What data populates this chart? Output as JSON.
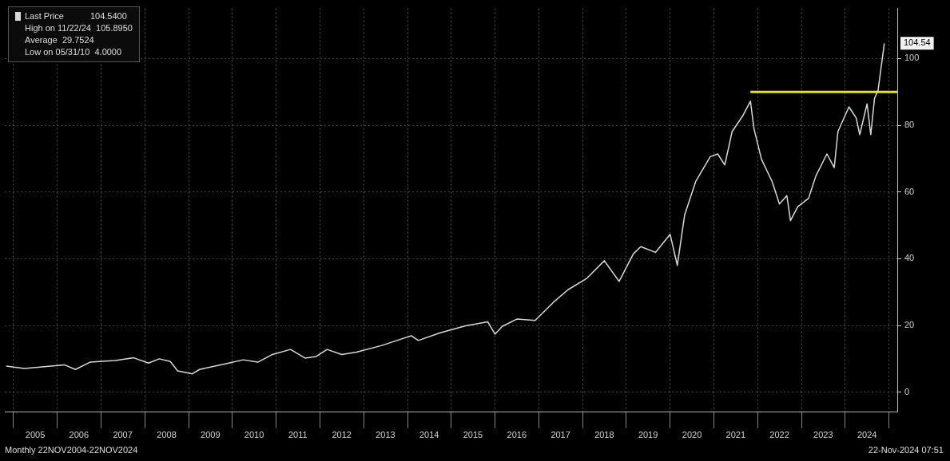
{
  "chart_data": {
    "type": "line",
    "x": [
      "2004-11",
      "2005-04",
      "2006-03",
      "2006-06",
      "2006-10",
      "2007-05",
      "2007-10",
      "2008-02",
      "2008-05",
      "2008-08",
      "2008-10",
      "2009-02",
      "2009-04",
      "2009-12",
      "2010-04",
      "2010-08",
      "2010-12",
      "2011-05",
      "2011-09",
      "2011-12",
      "2012-03",
      "2012-07",
      "2012-11",
      "2013-06",
      "2014-02",
      "2014-04",
      "2014-10",
      "2015-05",
      "2015-11",
      "2016-01",
      "2016-03",
      "2016-07",
      "2016-12",
      "2017-05",
      "2017-09",
      "2018-02",
      "2018-07",
      "2018-11",
      "2019-03",
      "2019-05",
      "2019-09",
      "2020-01",
      "2020-03",
      "2020-05",
      "2020-08",
      "2020-12",
      "2021-02",
      "2021-04",
      "2021-06",
      "2021-09",
      "2021-11",
      "2021-12",
      "2022-02",
      "2022-05",
      "2022-07",
      "2022-09",
      "2022-10",
      "2022-12",
      "2023-03",
      "2023-05",
      "2023-08",
      "2023-10",
      "2023-11",
      "2024-02",
      "2024-04",
      "2024-05",
      "2024-07",
      "2024-08",
      "2024-09",
      "2024-10",
      "2024-11-22"
    ],
    "series": [
      {
        "name": "Last Price",
        "color": "#d8d8d8",
        "values": [
          7.8,
          7.1,
          8.2,
          6.8,
          9.0,
          9.5,
          10.3,
          8.7,
          10.0,
          9.2,
          6.4,
          5.5,
          6.8,
          8.7,
          9.7,
          9.0,
          11.3,
          12.8,
          10.2,
          10.7,
          12.8,
          11.3,
          12.0,
          14.0,
          16.9,
          15.5,
          17.8,
          19.9,
          21.1,
          17.4,
          19.7,
          21.9,
          21.5,
          26.9,
          30.7,
          34.0,
          39.4,
          33.2,
          41.5,
          43.6,
          41.9,
          47.3,
          38.0,
          53.1,
          63.1,
          70.6,
          71.4,
          68.1,
          78.1,
          83.0,
          87.2,
          78.9,
          69.8,
          63.1,
          56.4,
          58.9,
          51.4,
          55.6,
          58.1,
          64.8,
          71.4,
          67.3,
          78.1,
          85.5,
          82.2,
          77.2,
          86.4,
          77.2,
          88.0,
          90.5,
          104.54
        ]
      },
      {
        "color": "#e6e033",
        "x": [
          "2021-11",
          "2025-03-10"
        ],
        "values": [
          90,
          90
        ]
      }
    ],
    "xlim": [
      "2004-10-20",
      "2025-03-10"
    ],
    "xticks": [
      {
        "value": "2005-01-01",
        "label": null
      },
      {
        "value": "2005-07-01",
        "label": "2005"
      },
      {
        "value": "2006-01-01",
        "label": null
      },
      {
        "value": "2006-07-01",
        "label": "2006"
      },
      {
        "value": "2007-01-01",
        "label": null
      },
      {
        "value": "2007-07-01",
        "label": "2007"
      },
      {
        "value": "2008-01-01",
        "label": null
      },
      {
        "value": "2008-07-01",
        "label": "2008"
      },
      {
        "value": "2009-01-01",
        "label": null
      },
      {
        "value": "2009-07-01",
        "label": "2009"
      },
      {
        "value": "2010-01-01",
        "label": null
      },
      {
        "value": "2010-07-01",
        "label": "2010"
      },
      {
        "value": "2011-01-01",
        "label": null
      },
      {
        "value": "2011-07-01",
        "label": "2011"
      },
      {
        "value": "2012-01-01",
        "label": null
      },
      {
        "value": "2012-07-01",
        "label": "2012"
      },
      {
        "value": "2013-01-01",
        "label": null
      },
      {
        "value": "2013-07-01",
        "label": "2013"
      },
      {
        "value": "2014-01-01",
        "label": null
      },
      {
        "value": "2014-07-01",
        "label": "2014"
      },
      {
        "value": "2015-01-01",
        "label": null
      },
      {
        "value": "2015-07-01",
        "label": "2015"
      },
      {
        "value": "2016-01-01",
        "label": null
      },
      {
        "value": "2016-07-01",
        "label": "2016"
      },
      {
        "value": "2017-01-01",
        "label": null
      },
      {
        "value": "2017-07-01",
        "label": "2017"
      },
      {
        "value": "2018-01-01",
        "label": null
      },
      {
        "value": "2018-07-01",
        "label": "2018"
      },
      {
        "value": "2019-01-01",
        "label": null
      },
      {
        "value": "2019-07-01",
        "label": "2019"
      },
      {
        "value": "2020-01-01",
        "label": null
      },
      {
        "value": "2020-07-01",
        "label": "2020"
      },
      {
        "value": "2021-01-01",
        "label": null
      },
      {
        "value": "2021-07-01",
        "label": "2021"
      },
      {
        "value": "2022-01-01",
        "label": null
      },
      {
        "value": "2022-07-01",
        "label": "2022"
      },
      {
        "value": "2023-01-01",
        "label": null
      },
      {
        "value": "2023-07-01",
        "label": "2023"
      },
      {
        "value": "2024-01-01",
        "label": null
      },
      {
        "value": "2024-07-01",
        "label": "2024"
      },
      {
        "value": "2025-01-01",
        "label": null
      }
    ],
    "ylim": [
      -6,
      115
    ],
    "yticks": [
      0,
      20,
      40,
      60,
      80,
      100
    ],
    "grid": true,
    "legend": "top left",
    "marker": "none",
    "annotations": [
      "104.5400",
      "High on 11/22/24  105.8950",
      "Average  29.7524",
      "Low on 05/31/10  4.0000",
      {
        "text": "104.54",
        "y": 104.54
      },
      "Monthly 22NOV2004-22NOV2024",
      "22-Nov-2024 07:51"
    ]
  }
}
